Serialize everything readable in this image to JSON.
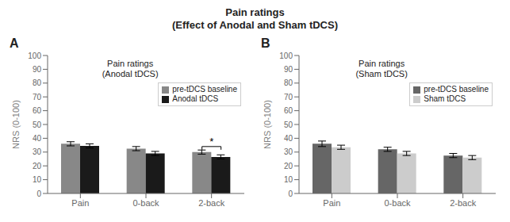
{
  "title": "Pain ratings\n(Effect of Anodal and Sham tDCS)",
  "chart_data": [
    {
      "type": "bar",
      "title": "A",
      "subtitle": "Pain ratings\n(Anodal tDCS)",
      "categories": [
        "Pain",
        "0-back",
        "2-back"
      ],
      "series": [
        {
          "name": "pre-tDCS baseline",
          "color": "#888888",
          "values": [
            36,
            32.5,
            30
          ],
          "errors": [
            1.5,
            1.5,
            1.5
          ]
        },
        {
          "name": "Anodal tDCS",
          "color": "#1a1a1a",
          "values": [
            34.5,
            29,
            26.5
          ],
          "errors": [
            1.5,
            1.5,
            1.5
          ]
        }
      ],
      "ylabel": "NRS (0-100)",
      "ylim": [
        0,
        100
      ],
      "yticks": [
        0,
        10,
        20,
        30,
        40,
        50,
        60,
        70,
        80,
        90,
        100
      ],
      "grid": false,
      "legend": "upper right",
      "annotations": [
        {
          "text": "*",
          "x": "2-back",
          "y": 34
        }
      ]
    },
    {
      "type": "bar",
      "title": "B",
      "subtitle": "Pain ratings\n(Sham tDCS)",
      "categories": [
        "Pain",
        "0-back",
        "2-back"
      ],
      "series": [
        {
          "name": "pre-tDCS baseline",
          "color": "#666666",
          "values": [
            36,
            32,
            27.5
          ],
          "errors": [
            2.0,
            1.5,
            1.5
          ]
        },
        {
          "name": "Sham tDCS",
          "color": "#cccccc",
          "values": [
            33.5,
            29,
            26
          ],
          "errors": [
            1.5,
            1.5,
            1.5
          ]
        }
      ],
      "ylabel": "NRS (0-100)",
      "ylim": [
        0,
        100
      ],
      "yticks": [
        0,
        10,
        20,
        30,
        40,
        50,
        60,
        70,
        80,
        90,
        100
      ],
      "grid": false,
      "legend": "upper right"
    }
  ]
}
